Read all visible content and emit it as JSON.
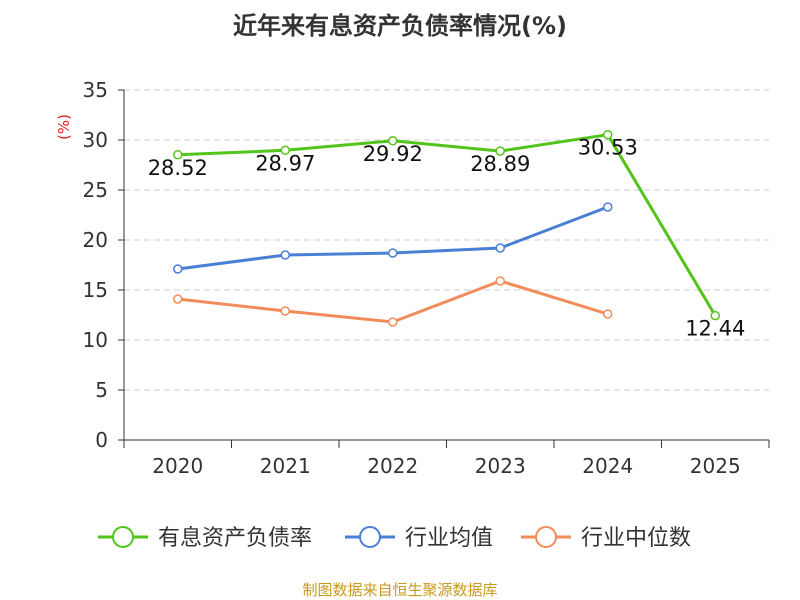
{
  "title": "近年来有息资产负债率情况(%)",
  "source": "制图数据来自恒生聚源数据库",
  "chart_data": {
    "type": "line",
    "title": "近年来有息资产负债率情况(%)",
    "ylabel": "(%)",
    "xlabel": "",
    "categories": [
      "2020",
      "2021",
      "2022",
      "2023",
      "2024",
      "2025"
    ],
    "ylim": [
      0,
      35
    ],
    "yticks": [
      0,
      5,
      10,
      15,
      20,
      25,
      30,
      35
    ],
    "grid": true,
    "legend": "bottom",
    "series": [
      {
        "name": "有息资产负债率",
        "color": "#52c41a",
        "values": [
          28.52,
          28.97,
          29.92,
          28.89,
          30.53,
          12.44
        ],
        "labels": [
          "28.52",
          "28.97",
          "29.92",
          "28.89",
          "30.53",
          "12.44"
        ]
      },
      {
        "name": "行业均值",
        "color": "#4a7fd6",
        "values": [
          17.1,
          18.5,
          18.7,
          19.2,
          23.3,
          null
        ]
      },
      {
        "name": "行业中位数",
        "color": "#f28c5a",
        "values": [
          14.1,
          12.9,
          11.8,
          15.9,
          12.6,
          null
        ]
      }
    ]
  }
}
